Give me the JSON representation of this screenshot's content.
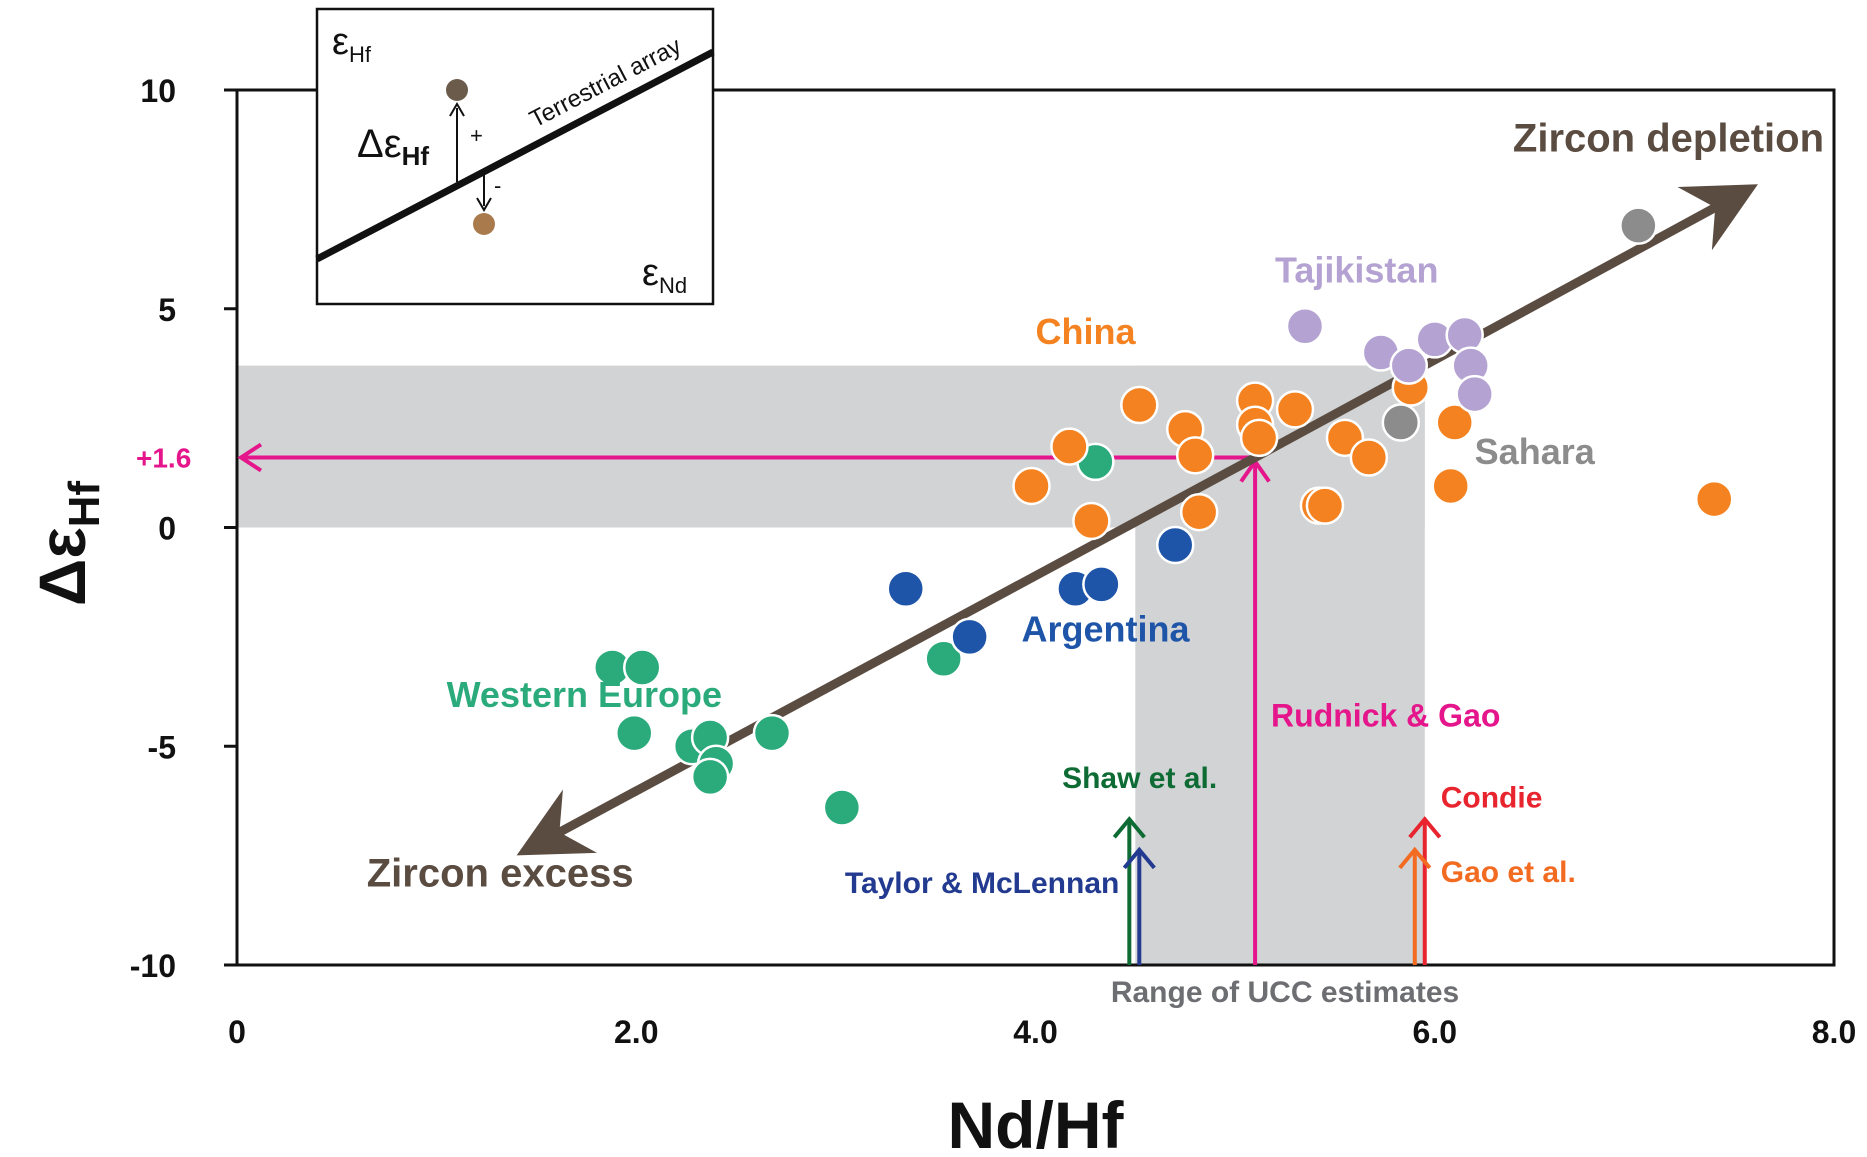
{
  "chart_data": {
    "type": "scatter",
    "xlabel": "Nd/Hf",
    "ylabel": "Δε",
    "ylabel_sub": "Hf",
    "xlim": [
      0,
      8.0
    ],
    "ylim": [
      -10,
      10
    ],
    "x_ticks": [
      {
        "value": 0,
        "label": "0"
      },
      {
        "value": 2.0,
        "label": "2.0"
      },
      {
        "value": 4.0,
        "label": "4.0"
      },
      {
        "value": 6.0,
        "label": "6.0"
      },
      {
        "value": 8.0,
        "label": "8.0"
      }
    ],
    "y_ticks": [
      {
        "value": 10,
        "label": "10"
      },
      {
        "value": 5,
        "label": "5"
      },
      {
        "value": 0,
        "label": "0"
      },
      {
        "value": -5,
        "label": "-5"
      },
      {
        "value": -10,
        "label": "-10"
      }
    ],
    "grid": false,
    "series": [
      {
        "name": "Western Europe",
        "color": "#2bab7c",
        "label_at": {
          "x": 1.05,
          "y": -4.1
        },
        "points": [
          {
            "x": 1.88,
            "y": -3.2
          },
          {
            "x": 2.03,
            "y": -3.2
          },
          {
            "x": 1.99,
            "y": -4.7
          },
          {
            "x": 2.28,
            "y": -5.0
          },
          {
            "x": 2.37,
            "y": -4.8
          },
          {
            "x": 2.4,
            "y": -5.4
          },
          {
            "x": 2.37,
            "y": -5.7
          },
          {
            "x": 2.68,
            "y": -4.7
          },
          {
            "x": 3.03,
            "y": -6.4
          },
          {
            "x": 3.54,
            "y": -3.0
          },
          {
            "x": 4.3,
            "y": 1.5
          }
        ]
      },
      {
        "name": "Argentina",
        "color": "#1f55a8",
        "label_at": {
          "x": 3.93,
          "y": -2.6
        },
        "points": [
          {
            "x": 3.35,
            "y": -1.4
          },
          {
            "x": 3.67,
            "y": -2.5
          },
          {
            "x": 4.2,
            "y": -1.4
          },
          {
            "x": 4.33,
            "y": -1.3
          },
          {
            "x": 4.7,
            "y": -0.4
          }
        ]
      },
      {
        "name": "China",
        "color": "#f58220",
        "label_at": {
          "x": 4.0,
          "y": 4.2
        },
        "points": [
          {
            "x": 3.98,
            "y": 0.95
          },
          {
            "x": 4.17,
            "y": 1.85
          },
          {
            "x": 4.28,
            "y": 0.15
          },
          {
            "x": 4.52,
            "y": 2.8
          },
          {
            "x": 4.75,
            "y": 2.25
          },
          {
            "x": 4.8,
            "y": 1.65
          },
          {
            "x": 4.82,
            "y": 0.35
          },
          {
            "x": 5.1,
            "y": 2.9
          },
          {
            "x": 5.1,
            "y": 2.35
          },
          {
            "x": 5.12,
            "y": 2.05
          },
          {
            "x": 5.3,
            "y": 2.7
          },
          {
            "x": 5.42,
            "y": 0.5
          },
          {
            "x": 5.45,
            "y": 0.5
          },
          {
            "x": 5.55,
            "y": 2.05
          },
          {
            "x": 5.67,
            "y": 1.6
          },
          {
            "x": 5.88,
            "y": 3.2
          },
          {
            "x": 6.08,
            "y": 0.95
          },
          {
            "x": 6.1,
            "y": 2.4
          },
          {
            "x": 7.4,
            "y": 0.65
          }
        ]
      },
      {
        "name": "Tajikistan",
        "color": "#b4a3d2",
        "label_at": {
          "x": 5.2,
          "y": 5.6
        },
        "points": [
          {
            "x": 5.35,
            "y": 4.6
          },
          {
            "x": 5.73,
            "y": 4.0
          },
          {
            "x": 5.87,
            "y": 3.7
          },
          {
            "x": 6.0,
            "y": 4.3
          },
          {
            "x": 6.15,
            "y": 4.4
          },
          {
            "x": 6.18,
            "y": 3.7
          },
          {
            "x": 6.2,
            "y": 3.05
          }
        ]
      },
      {
        "name": "Sahara",
        "color": "#8c8c8c",
        "label_at": {
          "x": 6.2,
          "y": 1.45
        },
        "points": [
          {
            "x": 5.83,
            "y": 2.4
          },
          {
            "x": 7.02,
            "y": 6.9
          }
        ]
      }
    ],
    "annotations": {
      "zircon_depletion": {
        "label": "Zircon depletion",
        "start": [
          5.1,
          1.6
        ],
        "end": [
          7.52,
          7.6
        ],
        "label_at": {
          "x": 7.95,
          "y": 8.6
        }
      },
      "zircon_excess": {
        "label": "Zircon excess",
        "start": [
          5.1,
          1.6
        ],
        "end": [
          1.5,
          -7.25
        ],
        "label_at": {
          "x": 0.65,
          "y": -8.2
        }
      },
      "ucc_range": {
        "label": "Range of UCC estimates",
        "x_min": 4.5,
        "x_max": 5.95,
        "y_min": 0,
        "y_max": 3.7
      },
      "rudnick_gao": {
        "label": "Rudnick & Gao",
        "x": 5.1,
        "y_value": 1.6,
        "value_label": "+1.6",
        "color": "#e5168b"
      },
      "estimate_markers": [
        {
          "label": "Shaw et al.",
          "x": 4.47,
          "tip_y": -6.6,
          "color": "#0e6b34",
          "label_at": {
            "x": 4.91,
            "y": -5.95
          },
          "anchor": "end"
        },
        {
          "label": "Taylor & McLennan",
          "x": 4.52,
          "tip_y": -7.3,
          "color": "#223a8f",
          "label_at": {
            "x": 4.42,
            "y": -8.35
          },
          "anchor": "end"
        },
        {
          "label": "Condie",
          "x": 5.95,
          "tip_y": -6.6,
          "color": "#e8252e",
          "label_at": {
            "x": 6.03,
            "y": -6.4
          },
          "anchor": "start"
        },
        {
          "label": "Gao et al.",
          "x": 5.9,
          "tip_y": -7.3,
          "color": "#f26b21",
          "label_at": {
            "x": 6.03,
            "y": -8.1
          },
          "anchor": "start"
        }
      ]
    },
    "inset": {
      "label_top": "ε",
      "label_top_sub": "Hf",
      "label_bottom": "ε",
      "label_bottom_sub": "Nd",
      "line_label": "Terrestrial array",
      "delta_label": "Δε",
      "delta_sub": "Hf",
      "plus": "+",
      "minus": "-",
      "point_above_color": "#6b5b4b",
      "point_below_color": "#a97a4c"
    }
  }
}
